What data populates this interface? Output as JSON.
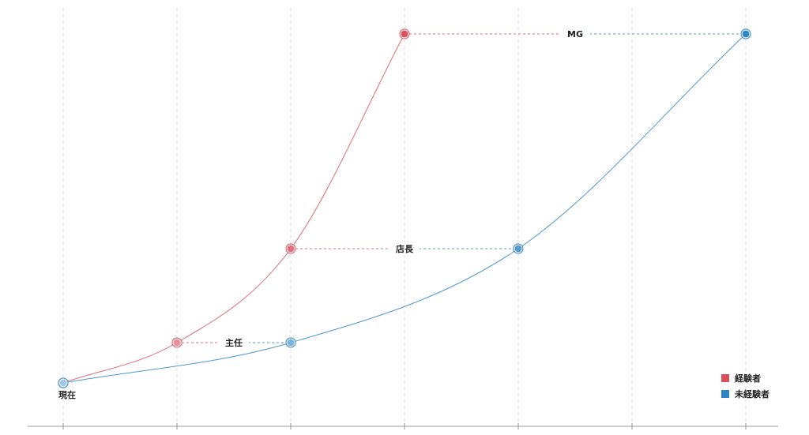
{
  "chart_data": {
    "type": "line",
    "x_categories": [
      "",
      "",
      "",
      "",
      "",
      "",
      ""
    ],
    "series": [
      {
        "name": "経験者",
        "color": "#d9505c",
        "points": [
          {
            "x": 0,
            "level": 0
          },
          {
            "x": 1,
            "level": 1
          },
          {
            "x": 2,
            "level": 2
          },
          {
            "x": 3,
            "level": 3
          }
        ]
      },
      {
        "name": "未経験者",
        "color": "#2e86c8",
        "points": [
          {
            "x": 0,
            "level": 0
          },
          {
            "x": 2,
            "level": 1
          },
          {
            "x": 4,
            "level": 2
          },
          {
            "x": 6,
            "level": 3
          }
        ]
      }
    ],
    "levels": [
      "現在",
      "主任",
      "店長",
      "MG"
    ],
    "level_values": [
      0,
      0.3,
      1.0,
      2.6
    ],
    "legend_position": "bottom-right",
    "grid": true
  }
}
